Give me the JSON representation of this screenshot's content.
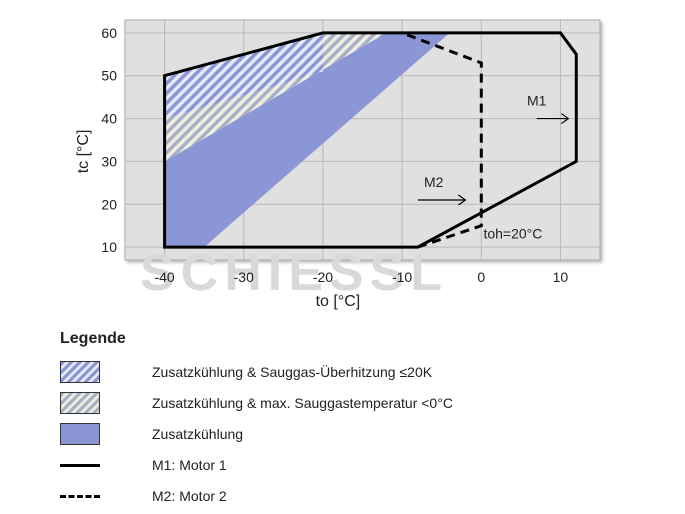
{
  "chart_data": {
    "type": "area",
    "xlabel": "to [°C]",
    "ylabel": "tc [°C]",
    "xlim": [
      -45,
      15
    ],
    "ylim": [
      7,
      63
    ],
    "xticks": [
      -40,
      -30,
      -20,
      -10,
      0,
      10
    ],
    "yticks": [
      10,
      20,
      30,
      40,
      50,
      60
    ],
    "grid": true,
    "colors": {
      "plot_bg": "#e0e0e0",
      "fill": "#8a96d6",
      "hatch_bg": "#e6e9f6",
      "hatch_bg2": "#eeeede"
    },
    "envelopes": [
      {
        "name": "M1: Motor 1",
        "style": "solid",
        "points": [
          [
            -40,
            10
          ],
          [
            -8,
            10
          ],
          [
            12,
            30
          ],
          [
            12,
            55
          ],
          [
            10,
            60
          ],
          [
            -20,
            60
          ],
          [
            -40,
            50
          ]
        ]
      },
      {
        "name": "M2: Motor 2",
        "style": "dashed",
        "points": [
          [
            -8,
            10
          ],
          [
            0,
            15
          ],
          [
            0,
            53
          ],
          [
            -10,
            60
          ]
        ]
      }
    ],
    "regions": [
      {
        "name": "Zusatzkühlung",
        "fill": "solid",
        "points": [
          [
            -40,
            10
          ],
          [
            -35,
            10
          ],
          [
            -4,
            60
          ],
          [
            -12,
            60
          ],
          [
            -40,
            30
          ]
        ]
      },
      {
        "name": "Zusatzkühlung & max. Sauggastemperatur <0°C",
        "fill": "hatch2",
        "points": [
          [
            -40,
            30
          ],
          [
            -12,
            60
          ],
          [
            -20,
            60
          ],
          [
            -40,
            50
          ]
        ]
      },
      {
        "name": "Zusatzkühlung & Sauggas-Überhitzung ≤20K",
        "fill": "hatch1",
        "points": [
          [
            -40,
            40
          ],
          [
            -20,
            51
          ],
          [
            -20,
            60
          ],
          [
            -40,
            50
          ]
        ]
      }
    ],
    "annotations": [
      {
        "text": "M1",
        "x": 7,
        "y": 43,
        "arrow": [
          [
            7,
            40
          ],
          [
            11,
            40
          ]
        ]
      },
      {
        "text": "M2",
        "x": -6,
        "y": 24,
        "arrow": [
          [
            -8,
            21
          ],
          [
            -2,
            21
          ]
        ]
      },
      {
        "text": "toh=20°C",
        "x": 4,
        "y": 12
      }
    ],
    "watermark": "SCHIESSL"
  },
  "legend": {
    "title": "Legende",
    "items": [
      {
        "label": "Zusatzkühlung & Sauggas-Überhitzung ≤20K",
        "kind": "hatch1"
      },
      {
        "label": "Zusatzkühlung & max. Sauggastemperatur <0°C",
        "kind": "hatch2"
      },
      {
        "label": "Zusatzkühlung",
        "kind": "solid"
      },
      {
        "label": "M1: Motor 1",
        "kind": "line"
      },
      {
        "label": "M2: Motor 2",
        "kind": "dashed"
      }
    ]
  }
}
